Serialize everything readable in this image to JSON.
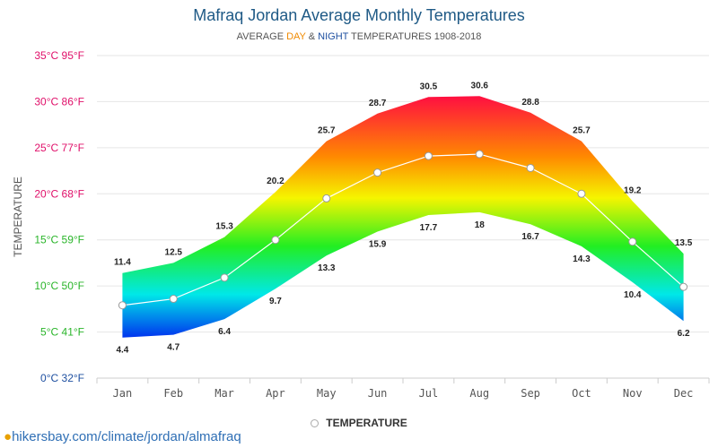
{
  "header": {
    "title": "Mafraq Jordan Average Monthly Temperatures",
    "subtitle_pre": "AVERAGE ",
    "subtitle_day": "DAY",
    "subtitle_amp": " & ",
    "subtitle_night": "NIGHT",
    "subtitle_post": " TEMPERATURES 1908-2018"
  },
  "legend": {
    "label": "TEMPERATURE"
  },
  "footer": {
    "source": "hikersbay.com/climate/jordan/almafraq",
    "pin_icon": "location-pin-icon"
  },
  "colors": {
    "title": "#1f5a86",
    "day": "#f08a00",
    "night": "#1e4fa0",
    "source": "#2f6fb5"
  },
  "chart_data": {
    "type": "area",
    "title": "Mafraq Jordan Average Monthly Temperatures",
    "subtitle": "AVERAGE DAY & NIGHT TEMPERATURES 1908-2018",
    "ylabel": "TEMPERATURE",
    "categories": [
      "Jan",
      "Feb",
      "Mar",
      "Apr",
      "May",
      "Jun",
      "Jul",
      "Aug",
      "Sep",
      "Oct",
      "Nov",
      "Dec"
    ],
    "ylim": [
      0,
      35
    ],
    "yticks": [
      {
        "value": 0,
        "label": "0°C 32°F",
        "color": "#1e4fa0"
      },
      {
        "value": 5,
        "label": "5°C 41°F",
        "color": "#2ab52a"
      },
      {
        "value": 10,
        "label": "10°C 50°F",
        "color": "#2ab52a"
      },
      {
        "value": 15,
        "label": "15°C 59°F",
        "color": "#2ab52a"
      },
      {
        "value": 20,
        "label": "20°C 68°F",
        "color": "#e0106a"
      },
      {
        "value": 25,
        "label": "25°C 77°F",
        "color": "#e0106a"
      },
      {
        "value": 30,
        "label": "30°C 86°F",
        "color": "#e0106a"
      },
      {
        "value": 35,
        "label": "35°C 95°F",
        "color": "#e0106a"
      }
    ],
    "series": [
      {
        "name": "DAY",
        "values": [
          11.4,
          12.5,
          15.3,
          20.2,
          25.7,
          28.7,
          30.5,
          30.6,
          28.8,
          25.7,
          19.2,
          13.5
        ]
      },
      {
        "name": "NIGHT",
        "values": [
          4.4,
          4.7,
          6.4,
          9.7,
          13.3,
          15.9,
          17.7,
          18,
          16.7,
          14.3,
          10.4,
          6.2
        ]
      },
      {
        "name": "TEMPERATURE",
        "values": [
          7.9,
          8.6,
          10.9,
          15.0,
          19.5,
          22.3,
          24.1,
          24.3,
          22.8,
          20.0,
          14.8,
          9.9
        ]
      }
    ],
    "grid": true,
    "legend_position": "bottom-center"
  }
}
